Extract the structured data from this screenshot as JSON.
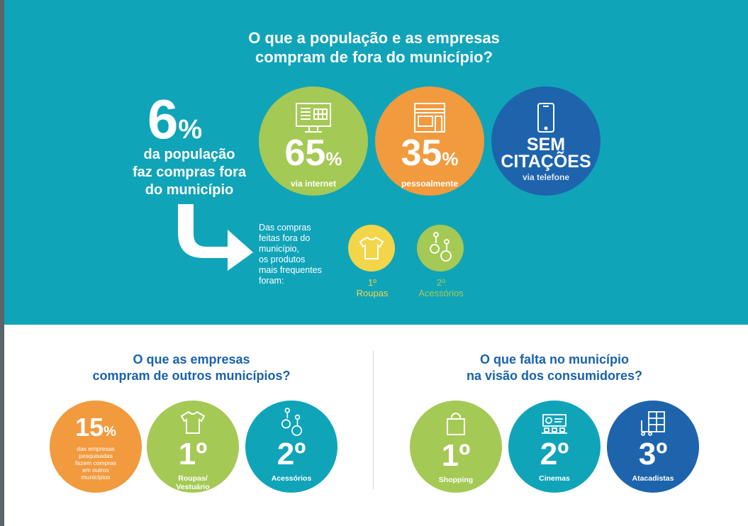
{
  "header": {
    "title_line1": "O que a população e as empresas",
    "title_line2": "compram de fora do município?"
  },
  "population": {
    "value": "6",
    "percent_sign": "%",
    "text_line1": "da população",
    "text_line2": "faz compras fora",
    "text_line3": "do município"
  },
  "channels": [
    {
      "value": "65",
      "percent_sign": "%",
      "label": "via internet",
      "icon": "computer-store-icon",
      "color": "#a5c955"
    },
    {
      "value": "35",
      "percent_sign": "%",
      "label": "pessoalmente",
      "icon": "storefront-icon",
      "color": "#f19a3e"
    },
    {
      "value_line1": "SEM",
      "value_line2": "CITAÇÕES",
      "label": "via telefone",
      "icon": "phone-icon",
      "color": "#1e64ad"
    }
  ],
  "products": {
    "intro": [
      "Das compras",
      "feitas fora do",
      "município,",
      "os produtos",
      "mais frequentes",
      "foram:"
    ],
    "items": [
      {
        "rank": "1º",
        "label": "Roupas",
        "icon": "shirt-icon",
        "color": "#f3d54a"
      },
      {
        "rank": "2º",
        "label": "Acessórios",
        "icon": "earrings-icon",
        "color": "#a5c955"
      }
    ]
  },
  "companies": {
    "title_line1": "O que as empresas",
    "title_line2": "compram de outros municípios?",
    "stat": {
      "value": "15",
      "percent_sign": "%",
      "text": [
        "das empresas",
        "pesquisadas",
        "fazem compras",
        "em outros",
        "municípios"
      ],
      "color": "#f19a3e"
    },
    "items": [
      {
        "rank": "1º",
        "label_line1": "Roupas/",
        "label_line2": "Vestuário",
        "icon": "shirt-icon",
        "color": "#a5c955"
      },
      {
        "rank": "2º",
        "label_line1": "Acessórios",
        "label_line2": "",
        "icon": "earrings-icon",
        "color": "#10a4b9"
      }
    ]
  },
  "missing": {
    "title_line1": "O que falta no município",
    "title_line2": "na visão dos consumidores?",
    "items": [
      {
        "rank": "1º",
        "label": "Shopping",
        "icon": "shopping-bag-icon",
        "color": "#a5c955"
      },
      {
        "rank": "2º",
        "label": "Cinemas",
        "icon": "cinema-icon",
        "color": "#10a4b9"
      },
      {
        "rank": "3º",
        "label": "Atacadistas",
        "icon": "warehouse-icon",
        "color": "#1e64ad"
      }
    ]
  }
}
